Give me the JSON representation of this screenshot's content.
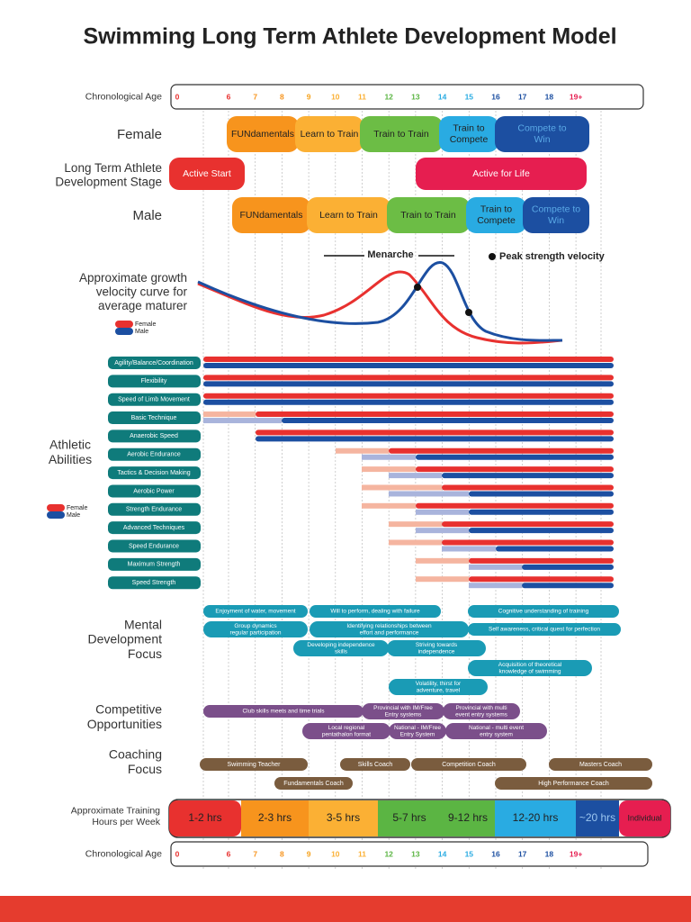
{
  "title": "Swimming Long Term Athlete Development Model",
  "ages": [
    "0",
    "6",
    "7",
    "8",
    "9",
    "10",
    "11",
    "12",
    "13",
    "14",
    "15",
    "16",
    "17",
    "18",
    "19+"
  ],
  "row_labels": {
    "age_top": [
      "Chronological Age"
    ],
    "female": [
      "Female"
    ],
    "ltad": [
      "Long Term Athlete",
      "Development Stage"
    ],
    "male": [
      "Male"
    ],
    "growth": [
      "Approximate growth",
      "velocity curve for",
      "average maturer"
    ],
    "abilities": [
      "Athletic",
      "Abilities"
    ],
    "mental": [
      "Mental",
      "Development",
      "Focus"
    ],
    "competitive": [
      "Competitive",
      "Opportunities"
    ],
    "coaching": [
      "Coaching",
      "Focus"
    ],
    "training": [
      "Approximate Training",
      "Hours per Week"
    ],
    "age_bottom": [
      "Chronological Age"
    ]
  },
  "female_stages": [
    [
      "FUNdamentals"
    ],
    [
      "Learn to Train"
    ],
    [
      "Train to Train"
    ],
    [
      "Train to",
      "Compete"
    ],
    [
      "Compete to",
      "Win"
    ]
  ],
  "ltad_stages": [
    [
      "Active Start"
    ],
    [
      "Active for Life"
    ]
  ],
  "male_stages": [
    [
      "FUNdamentals"
    ],
    [
      "Learn to Train"
    ],
    [
      "Train to Train"
    ],
    [
      "Train to",
      "Compete"
    ],
    [
      "Compete to",
      "Win"
    ]
  ],
  "growth": {
    "menarche": "Menarche",
    "peak": "Peak strength velocity"
  },
  "legend": [
    "Female",
    "Male"
  ],
  "abilities": [
    "Agility/Balance/Coordination",
    "Flexibility",
    "Speed of Limb Movement",
    "Basic Technique",
    "Anaerobic Speed",
    "Aerobic Endurance",
    "Tactics & Decision Making",
    "Aerobic Power",
    "Strength Endurance",
    "Advanced Techniques",
    "Speed Endurance",
    "Maximum Strength",
    "Speed Strength"
  ],
  "mental": [
    [
      "Enjoyment of water, movement"
    ],
    [
      "Group dynamics",
      "regular participation"
    ],
    [
      "Will to perform, dealing with failure"
    ],
    [
      "Identifying relationships between",
      "effort and performance"
    ],
    [
      "Developing independence",
      "skills"
    ],
    [
      "Striving towards",
      "independence"
    ],
    [
      "Cognitive understanding of training"
    ],
    [
      "Self awareness, critical quest for perfection"
    ],
    [
      "Acquisition of theoretical",
      "knowledge of swimming"
    ],
    [
      "Volatility, thirst for",
      "adventure, travel"
    ]
  ],
  "competitive": [
    [
      "Club skills meets and time trials"
    ],
    [
      "Provincial with IM/Free",
      "Entry systems"
    ],
    [
      "Provincial with multi",
      "event entry systems"
    ],
    [
      "Local regional",
      "pentathalon format"
    ],
    [
      "National - IM/Free",
      "Entry System"
    ],
    [
      "National - multi event",
      "entry system"
    ]
  ],
  "coaching": [
    [
      "Swimming Teacher"
    ],
    [
      "Fundamentals Coach"
    ],
    [
      "Skills Coach"
    ],
    [
      "Competition Coach"
    ],
    [
      "Masters Coach"
    ],
    [
      "High Performance Coach"
    ]
  ],
  "training_hours": [
    "1-2 hrs",
    "2-3 hrs",
    "3-5 hrs",
    "5-7 hrs",
    "9-12 hrs",
    "12-20 hrs",
    "~20 hrs",
    "Individual"
  ]
}
